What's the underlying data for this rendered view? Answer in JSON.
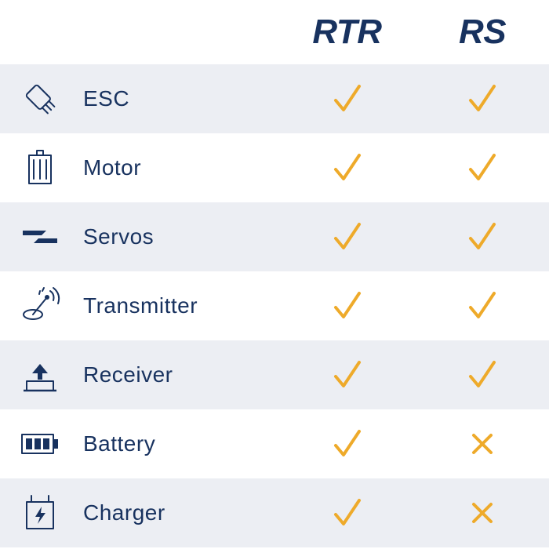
{
  "colors": {
    "navy": "#18325f",
    "orange": "#eeaa2a",
    "row_alt": "#eceef3",
    "row_base": "#ffffff"
  },
  "columns": [
    "RTR",
    "RS"
  ],
  "rows": [
    {
      "icon": "esc",
      "label": "ESC",
      "rtr": true,
      "rs": true
    },
    {
      "icon": "motor",
      "label": "Motor",
      "rtr": true,
      "rs": true
    },
    {
      "icon": "servos",
      "label": "Servos",
      "rtr": true,
      "rs": true
    },
    {
      "icon": "transmitter",
      "label": "Transmitter",
      "rtr": true,
      "rs": true
    },
    {
      "icon": "receiver",
      "label": "Receiver",
      "rtr": true,
      "rs": true
    },
    {
      "icon": "battery",
      "label": "Battery",
      "rtr": true,
      "rs": false
    },
    {
      "icon": "charger",
      "label": "Charger",
      "rtr": true,
      "rs": false
    }
  ],
  "typography": {
    "header_fontsize": 44,
    "label_fontsize": 28
  }
}
